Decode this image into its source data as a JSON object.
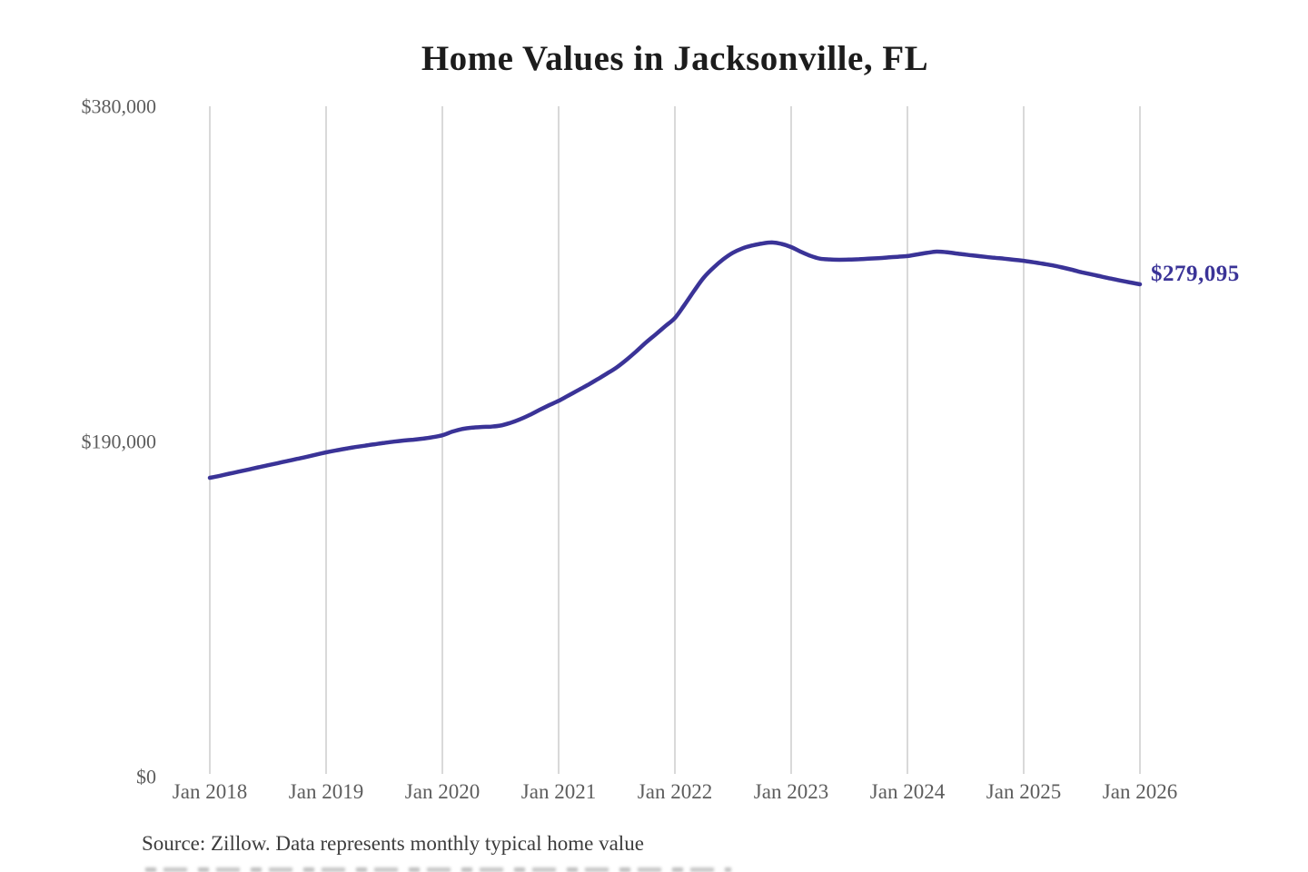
{
  "page": {
    "title": "Home Values in Jacksonville, FL",
    "end_label": "$279,095",
    "source_note": "Source: Zillow. Data represents monthly typical home value"
  },
  "chart_data": {
    "type": "line",
    "title": "Home Values in Jacksonville, FL",
    "series_name": "Monthly typical home value",
    "source": "Zillow",
    "x_start": "2018-01",
    "x_end": "2026-01",
    "interval": "monthly",
    "x_tick_labels": [
      "Jan 2018",
      "Jan 2019",
      "Jan 2020",
      "Jan 2021",
      "Jan 2022",
      "Jan 2023",
      "Jan 2024",
      "Jan 2025",
      "Jan 2026"
    ],
    "y_ticks": [
      {
        "value": 0,
        "label": "$0"
      },
      {
        "value": 190000,
        "label": "$190,000"
      },
      {
        "value": 380000,
        "label": "$380,000"
      }
    ],
    "ylim": [
      0,
      380000
    ],
    "gridlines": "vertical-yearly",
    "legend_position": "none",
    "end_value": 279095,
    "end_value_label": "$279,095",
    "line_color": "#3a3397",
    "grid_color": "#c9c9c9",
    "axis_text_color": "#5d5d5d",
    "values": [
      169400,
      170500,
      171700,
      172900,
      174100,
      175300,
      176500,
      177700,
      178900,
      180100,
      181300,
      182600,
      183800,
      184900,
      185900,
      186800,
      187600,
      188400,
      189200,
      189900,
      190500,
      191000,
      191600,
      192400,
      193500,
      195500,
      197000,
      197800,
      198200,
      198400,
      199000,
      200500,
      202500,
      205000,
      207800,
      210500,
      213000,
      216000,
      219000,
      222000,
      225200,
      228500,
      232000,
      236300,
      241000,
      246000,
      250600,
      255300,
      260000,
      267500,
      275500,
      283000,
      288600,
      293300,
      297000,
      299500,
      301100,
      302200,
      302800,
      302000,
      300200,
      297500,
      295200,
      293600,
      293200,
      293000,
      293100,
      293300,
      293600,
      293900,
      294300,
      294700,
      295100,
      296000,
      296900,
      297600,
      297300,
      296600,
      295900,
      295300,
      294700,
      294100,
      293600,
      293000,
      292400,
      291600,
      290700,
      289800,
      288600,
      287300,
      285900,
      284700,
      283500,
      282300,
      281200,
      280100,
      279095
    ]
  }
}
